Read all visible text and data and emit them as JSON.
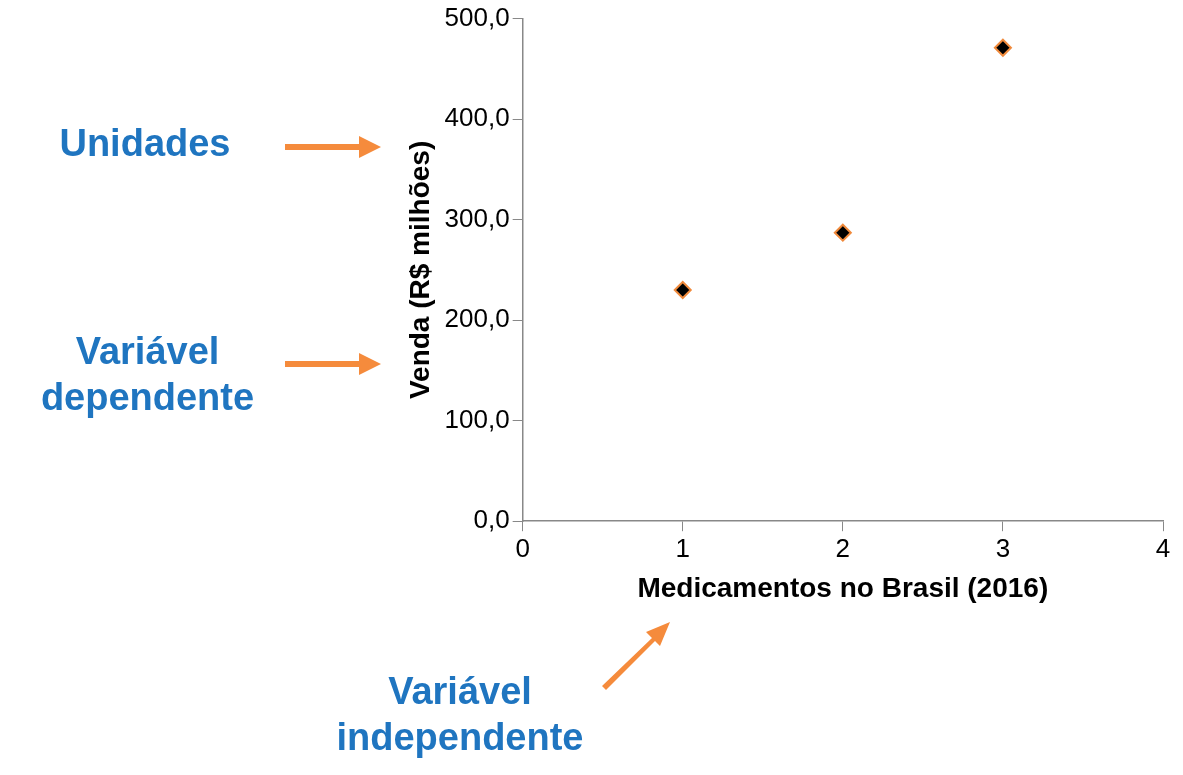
{
  "chart_data": {
    "type": "scatter",
    "xlabel": "Medicamentos no Brasil (2016)",
    "ylabel": "Venda (R$ milhões)",
    "x": [
      1,
      2,
      3
    ],
    "series": [
      {
        "color": "#000000",
        "values": [
          230,
          287,
          471
        ]
      }
    ],
    "xlim": [
      0,
      4
    ],
    "xticks": [
      0,
      1,
      2,
      3,
      4
    ],
    "ylim": [
      0,
      500
    ],
    "yticks": [
      {
        "value": 0,
        "label": "0,0"
      },
      {
        "value": 100,
        "label": "100,0"
      },
      {
        "value": 200,
        "label": "200,0"
      },
      {
        "value": 300,
        "label": "300,0"
      },
      {
        "value": 400,
        "label": "400,0"
      },
      {
        "value": 500,
        "label": "500,0"
      }
    ],
    "grid": false,
    "legend": false,
    "marker": "diamond",
    "annotations": [
      "Unidades",
      "Variável dependente",
      "Variável independente"
    ]
  }
}
